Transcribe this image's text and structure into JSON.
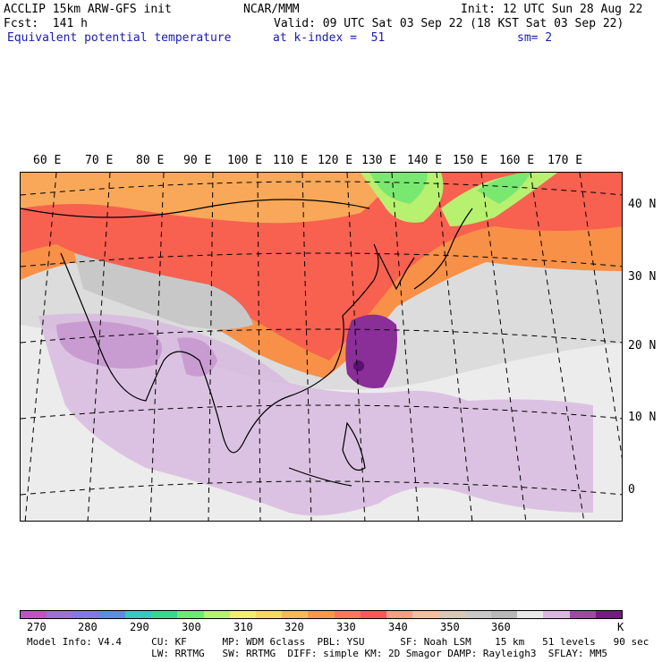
{
  "header": {
    "line1_left": "ACCLIP 15km ARW-GFS init",
    "line1_mid": "NCAR/MMM",
    "line1_right": "Init: 12 UTC Sun 28 Aug 22",
    "line2_left": "Fcst:  141 h",
    "line2_right": "Valid: 09 UTC Sat 03 Sep 22 (18 KST Sat 03 Sep 22)",
    "line3_left": "Equivalent potential temperature",
    "line3_mid": "at k-index =  51",
    "line3_right": "sm= 2"
  },
  "map": {
    "lon_labels": [
      "60 E",
      "70 E",
      "80 E",
      "90 E",
      "100 E",
      "110 E",
      "120 E",
      "130 E",
      "140 E",
      "150 E",
      "160 E",
      "170 E"
    ],
    "lat_labels": [
      "40 N",
      "30 N",
      "20 N",
      "10 N",
      "0"
    ]
  },
  "colorbar": {
    "colors": [
      "#c451c4",
      "#9a72d8",
      "#8278e8",
      "#5a8ee0",
      "#38c8c0",
      "#38d890",
      "#6aec70",
      "#b8f070",
      "#f0f070",
      "#f8d860",
      "#f8b858",
      "#f89848",
      "#f87858",
      "#f85858",
      "#f8a078",
      "#f0c0a0",
      "#d8c8b8",
      "#c8c8c8",
      "#b8b8b8",
      "#e8e8e8",
      "#d8b8e0",
      "#a048a8",
      "#7a1888"
    ],
    "ticks": [
      "270",
      "280",
      "290",
      "300",
      "310",
      "320",
      "330",
      "340",
      "350",
      "360"
    ],
    "unit": "K"
  },
  "footer": {
    "line1": "Model Info: V4.4     CU: KF      MP: WDM 6class  PBL: YSU      SF: Noah LSM    15 km   51 levels   90 sec",
    "line2": "                     LW: RRTMG   SW: RRTMG  DIFF: simple KM: 2D Smagor DAMP: Rayleigh3  SFLAY: MM5"
  }
}
